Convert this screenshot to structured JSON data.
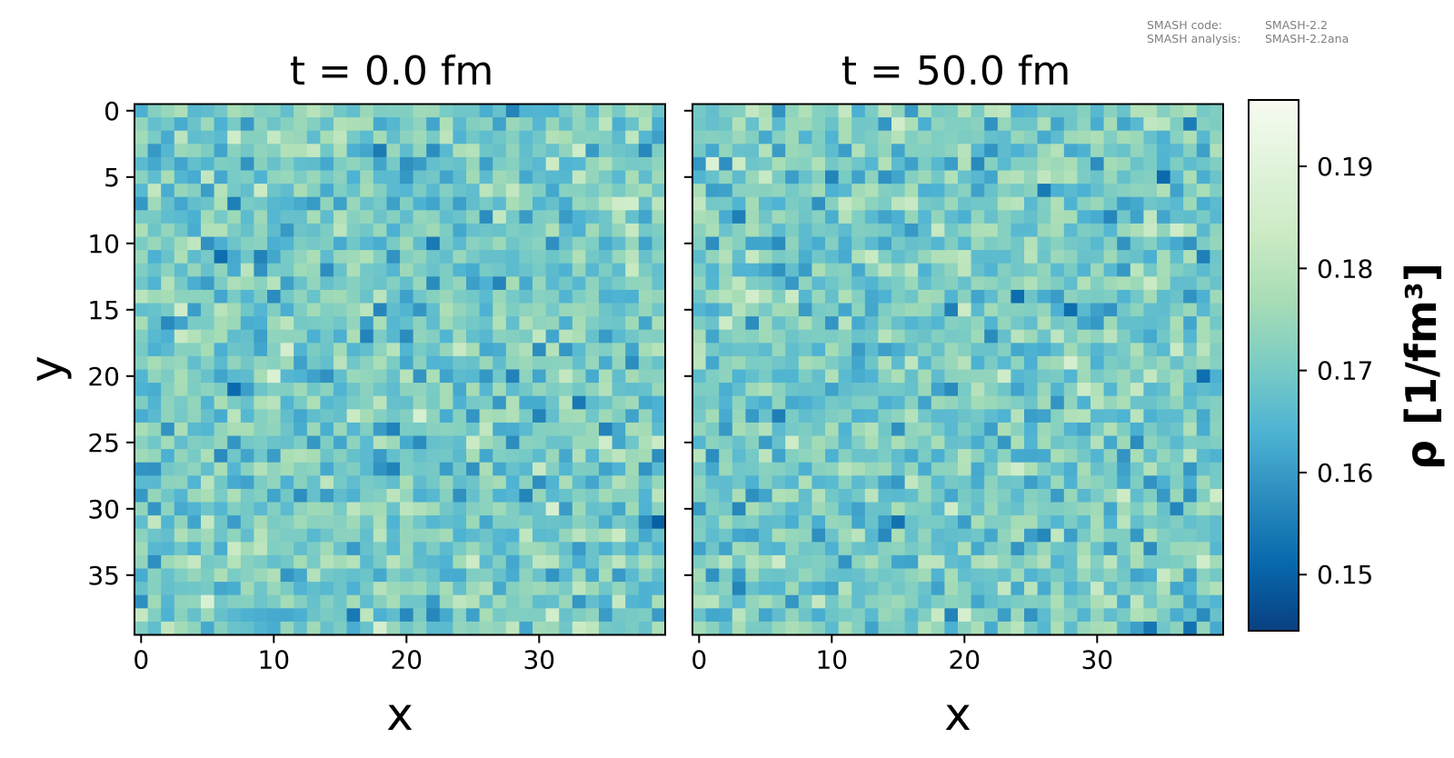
{
  "meta": {
    "code_label": "SMASH code:",
    "code_value": "SMASH-2.2",
    "analysis_label": "SMASH analysis:",
    "analysis_value": "SMASH-2.2ana"
  },
  "chart_data": {
    "type": "heatmap",
    "colormap": "GnBu_r",
    "colormap_stops": [
      "#084081",
      "#0868ac",
      "#2b8cbe",
      "#4eb3d3",
      "#7bccc4",
      "#a8ddb5",
      "#ccebc5",
      "#e0f3db",
      "#f7fcf0"
    ],
    "grid": false,
    "grid_size": [
      40,
      40
    ],
    "panels": [
      {
        "title": "t = 0.0 fm",
        "xlabel": "x",
        "ylabel": "y",
        "xticks": [
          "0",
          "10",
          "20",
          "30"
        ],
        "yticks": [
          "0",
          "5",
          "10",
          "15",
          "20",
          "25",
          "30",
          "35"
        ],
        "xlim": [
          -0.5,
          39.5
        ],
        "ylim": [
          39.5,
          -0.5
        ],
        "approx_mean": 0.17,
        "approx_range": [
          0.149,
          0.195
        ]
      },
      {
        "title": "t = 50.0 fm",
        "xlabel": "x",
        "ylabel": "",
        "xticks": [
          "0",
          "10",
          "20",
          "30"
        ],
        "yticks": [
          "",
          "",
          "",
          "",
          "",
          "",
          "",
          ""
        ],
        "xlim": [
          -0.5,
          39.5
        ],
        "ylim": [
          39.5,
          -0.5
        ],
        "approx_mean": 0.17,
        "approx_range": [
          0.146,
          0.195
        ]
      }
    ],
    "colorbar": {
      "label": "ρ [1/fm³]",
      "range": [
        0.1445,
        0.1965
      ],
      "ticks": [
        0.15,
        0.16,
        0.17,
        0.18,
        0.19
      ],
      "tick_labels": [
        "0.15",
        "0.16",
        "0.17",
        "0.18",
        "0.19"
      ]
    }
  }
}
